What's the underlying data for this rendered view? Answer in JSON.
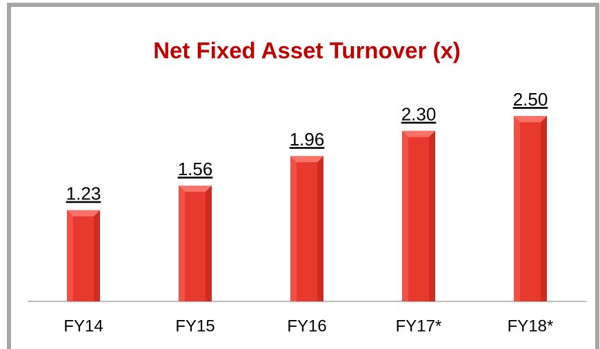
{
  "chart_data": {
    "type": "bar",
    "title": "Net Fixed Asset Turnover (x)",
    "categories": [
      "FY14",
      "FY15",
      "FY16",
      "FY17*",
      "FY18*"
    ],
    "values": [
      1.23,
      1.56,
      1.96,
      2.3,
      2.5
    ],
    "value_labels": [
      "1.23",
      "1.56",
      "1.96",
      "2.30",
      "2.50"
    ],
    "color": "#e8392e",
    "ylim": [
      0,
      2.8
    ]
  }
}
